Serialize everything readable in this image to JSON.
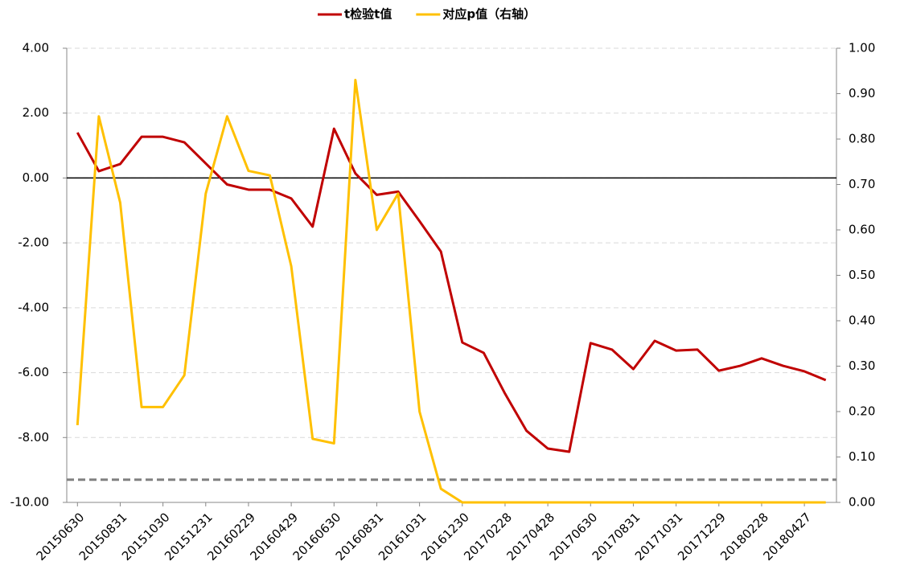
{
  "chart_data": {
    "type": "line",
    "categories": [
      "20150630",
      null,
      "20150831",
      null,
      "20151030",
      null,
      "20151231",
      null,
      "20160229",
      null,
      "20160429",
      null,
      "20160630",
      null,
      "20160831",
      null,
      "20161031",
      null,
      "20161230",
      null,
      "20170228",
      null,
      "20170428",
      null,
      "20170630",
      null,
      "20170831",
      null,
      "20171031",
      null,
      "20171229",
      null,
      "20180228",
      null,
      "20180427",
      null
    ],
    "series": [
      {
        "name": "t检验t值",
        "color": "#c00000",
        "values": [
          1.4,
          0.21,
          0.43,
          1.27,
          1.27,
          1.1,
          0.45,
          -0.2,
          -0.36,
          -0.36,
          -0.63,
          -1.5,
          1.52,
          0.14,
          -0.52,
          -0.42,
          -1.33,
          -2.27,
          -5.07,
          -5.39,
          -6.65,
          -7.79,
          -8.34,
          -8.44,
          -5.09,
          -5.29,
          -5.89,
          -5.02,
          -5.32,
          -5.29,
          -5.94,
          -5.79,
          -5.56,
          -5.79,
          -5.96,
          -6.23
        ]
      },
      {
        "name": "对应p值（右轴）",
        "color": "#ffc000",
        "axis": "y2",
        "values": [
          0.17,
          0.85,
          0.66,
          0.21,
          0.21,
          0.28,
          0.68,
          0.85,
          0.73,
          0.72,
          0.52,
          0.14,
          0.13,
          0.93,
          0.6,
          0.68,
          0.2,
          0.03,
          0,
          0,
          0,
          0,
          0,
          0,
          0,
          0,
          0,
          0,
          0,
          0,
          0,
          0,
          0,
          0,
          0,
          0
        ]
      }
    ],
    "ylim": [
      -10,
      4
    ],
    "yticks": [
      {
        "value": 4,
        "label": "4.00"
      },
      {
        "value": 2,
        "label": "2.00"
      },
      {
        "value": 0,
        "label": "0.00"
      },
      {
        "value": -2,
        "label": "-2.00"
      },
      {
        "value": -4,
        "label": "-4.00"
      },
      {
        "value": -6,
        "label": "-6.00"
      },
      {
        "value": -8,
        "label": "-8.00"
      },
      {
        "value": -10,
        "label": "-10.00"
      }
    ],
    "y2lim": [
      0,
      1
    ],
    "y2ticks": [
      {
        "value": 1,
        "label": "1.00"
      },
      {
        "value": 0.9,
        "label": "0.90"
      },
      {
        "value": 0.8,
        "label": "0.80"
      },
      {
        "value": 0.7,
        "label": "0.70"
      },
      {
        "value": 0.6,
        "label": "0.60"
      },
      {
        "value": 0.5,
        "label": "0.50"
      },
      {
        "value": 0.4,
        "label": "0.40"
      },
      {
        "value": 0.3,
        "label": "0.30"
      },
      {
        "value": 0.2,
        "label": "0.20"
      },
      {
        "value": 0.1,
        "label": "0.10"
      },
      {
        "value": 0,
        "label": "0.00"
      }
    ],
    "reference_line": {
      "value": 0.05,
      "axis": "y2",
      "color": "#808080"
    },
    "grid": true,
    "legend": "top"
  }
}
